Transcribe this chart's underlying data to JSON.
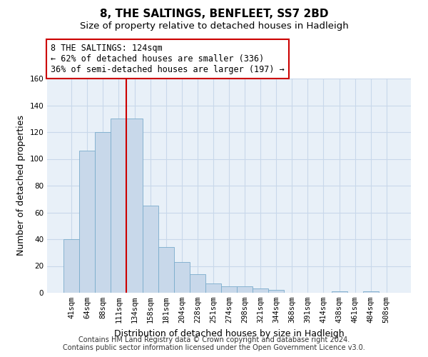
{
  "title": "8, THE SALTINGS, BENFLEET, SS7 2BD",
  "subtitle": "Size of property relative to detached houses in Hadleigh",
  "xlabel": "Distribution of detached houses by size in Hadleigh",
  "ylabel": "Number of detached properties",
  "categories": [
    "41sqm",
    "64sqm",
    "88sqm",
    "111sqm",
    "134sqm",
    "158sqm",
    "181sqm",
    "204sqm",
    "228sqm",
    "251sqm",
    "274sqm",
    "298sqm",
    "321sqm",
    "344sqm",
    "368sqm",
    "391sqm",
    "414sqm",
    "438sqm",
    "461sqm",
    "484sqm",
    "508sqm"
  ],
  "bar_heights": [
    40,
    106,
    120,
    130,
    130,
    65,
    34,
    23,
    14,
    7,
    5,
    5,
    3,
    2,
    0,
    0,
    0,
    1,
    0,
    1,
    0
  ],
  "bar_color": "#c8d8ea",
  "bar_edge_color": "#7aaccc",
  "bar_width": 1.0,
  "red_line_x": 3.5,
  "annotation_line1": "8 THE SALTINGS: 124sqm",
  "annotation_line2": "← 62% of detached houses are smaller (336)",
  "annotation_line3": "36% of semi-detached houses are larger (197) →",
  "annotation_box_color": "white",
  "annotation_box_edge": "#cc0000",
  "red_line_color": "#cc0000",
  "ylim": [
    0,
    160
  ],
  "yticks": [
    0,
    20,
    40,
    60,
    80,
    100,
    120,
    140,
    160
  ],
  "grid_color": "#c8d8ea",
  "bg_color": "#e8f0f8",
  "footer_text": "Contains HM Land Registry data © Crown copyright and database right 2024.\nContains public sector information licensed under the Open Government Licence v3.0.",
  "title_fontsize": 11,
  "subtitle_fontsize": 9.5,
  "xlabel_fontsize": 9,
  "ylabel_fontsize": 9,
  "tick_fontsize": 7.5,
  "annotation_fontsize": 8.5,
  "footer_fontsize": 7
}
